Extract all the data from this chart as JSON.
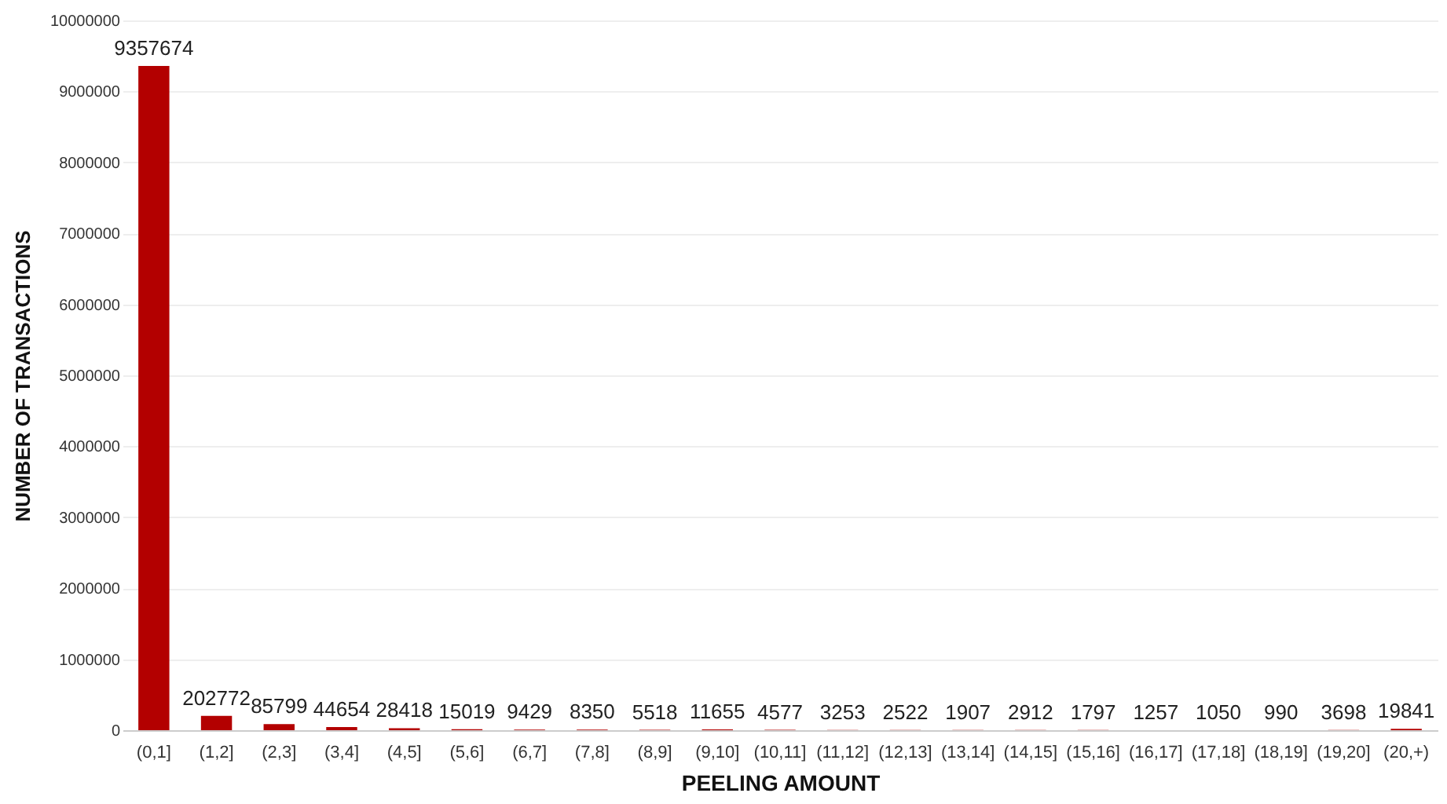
{
  "chart_data": {
    "type": "bar",
    "xlabel": "PEELING AMOUNT",
    "ylabel": "NUMBER OF TRANSACTIONS",
    "categories": [
      "(0,1]",
      "(1,2]",
      "(2,3]",
      "(3,4]",
      "(4,5]",
      "(5,6]",
      "(6,7]",
      "(7,8]",
      "(8,9]",
      "(9,10]",
      "(10,11]",
      "(11,12]",
      "(12,13]",
      "(13,14]",
      "(14,15]",
      "(15,16]",
      "(16,17]",
      "(17,18]",
      "(18,19]",
      "(19,20]",
      "(20,+)"
    ],
    "values": [
      9357674,
      202772,
      85799,
      44654,
      28418,
      15019,
      9429,
      8350,
      5518,
      11655,
      4577,
      3253,
      2522,
      1907,
      2912,
      1797,
      1257,
      1050,
      990,
      3698,
      19841
    ],
    "color": "#b30000",
    "ylim": [
      0,
      10000000
    ],
    "yticks": [
      0,
      1000000,
      2000000,
      3000000,
      4000000,
      5000000,
      6000000,
      7000000,
      8000000,
      9000000,
      10000000
    ],
    "grid": "y",
    "data_labels": true
  }
}
